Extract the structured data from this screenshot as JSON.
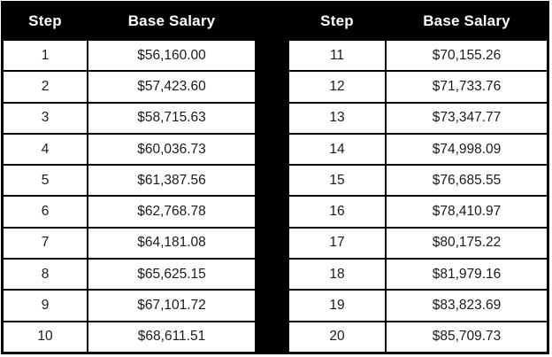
{
  "colors": {
    "header_bg": "#000000",
    "header_text": "#ffffff",
    "grid_border": "#000000",
    "separator": "#000000",
    "row_bg": "#ffffff",
    "cell_text": "#1a1a1a"
  },
  "table": {
    "headers": {
      "left_step": "Step",
      "left_salary": "Base Salary",
      "right_step": "Step",
      "right_salary": "Base Salary"
    },
    "rows": [
      {
        "left_step": "1",
        "left_salary": "$56,160.00",
        "right_step": "11",
        "right_salary": "$70,155.26"
      },
      {
        "left_step": "2",
        "left_salary": "$57,423.60",
        "right_step": "12",
        "right_salary": "$71,733.76"
      },
      {
        "left_step": "3",
        "left_salary": "$58,715.63",
        "right_step": "13",
        "right_salary": "$73,347.77"
      },
      {
        "left_step": "4",
        "left_salary": "$60,036.73",
        "right_step": "14",
        "right_salary": "$74,998.09"
      },
      {
        "left_step": "5",
        "left_salary": "$61,387.56",
        "right_step": "15",
        "right_salary": "$76,685.55"
      },
      {
        "left_step": "6",
        "left_salary": "$62,768.78",
        "right_step": "16",
        "right_salary": "$78,410.97"
      },
      {
        "left_step": "7",
        "left_salary": "$64,181.08",
        "right_step": "17",
        "right_salary": "$80,175.22"
      },
      {
        "left_step": "8",
        "left_salary": "$65,625.15",
        "right_step": "18",
        "right_salary": "$81,979.16"
      },
      {
        "left_step": "9",
        "left_salary": "$67,101.72",
        "right_step": "19",
        "right_salary": "$83,823.69"
      },
      {
        "left_step": "10",
        "left_salary": "$68,611.51",
        "right_step": "20",
        "right_salary": "$85,709.73"
      }
    ]
  }
}
